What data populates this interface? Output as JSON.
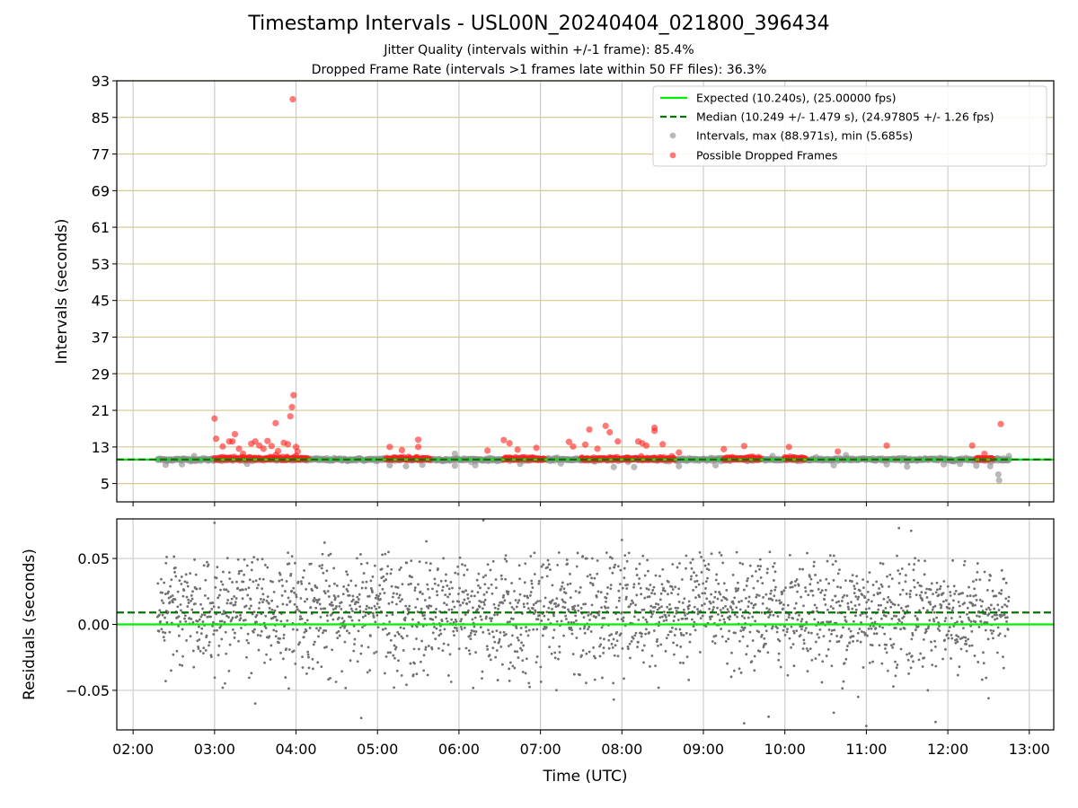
{
  "title": "Timestamp Intervals - USL00N_20240404_021800_396434",
  "subtitle_1": "Jitter Quality (intervals within +/-1 frame): 85.4%",
  "subtitle_2": "Dropped Frame Rate (intervals >1 frames late within 50 FF files): 36.3%",
  "colors": {
    "expected": "#00ee00",
    "median": "#007700",
    "intervals": "#8c8c8c",
    "dropped": "#ff2020",
    "residuals": "#707070",
    "hgrid_top": "#d8c890",
    "grid": "#cccccc"
  },
  "chart_data": [
    {
      "type": "scatter",
      "ylabel": "Intervals (seconds)",
      "xlabel": "",
      "x_unit": "hours UTC",
      "xlim": [
        1.8,
        13.3
      ],
      "ylim": [
        1,
        93
      ],
      "yticks": [
        5,
        13,
        21,
        29,
        37,
        45,
        53,
        61,
        69,
        77,
        85,
        93
      ],
      "grid": true,
      "legend": {
        "placement": "top-right",
        "entries": [
          "Expected (10.240s), (25.00000 fps)",
          "Median (10.249 +/- 1.479 s), (24.97805 +/- 1.26 fps)",
          "Intervals, max (88.971s), min (5.685s)",
          "Possible Dropped Frames"
        ]
      },
      "series": [
        {
          "name": "Expected (10.240s), (25.00000 fps)",
          "kind": "hline",
          "y": 10.24
        },
        {
          "name": "Median (10.249 +/- 1.479 s), (24.97805 +/- 1.26 fps)",
          "kind": "hline-dashed",
          "y": 10.249
        },
        {
          "name": "Intervals, max (88.971s), min (5.685s)",
          "kind": "scatter",
          "note_range": "dense band from 02:18 to 12:45 near 10.24 s",
          "points": [
            [
              2.4,
              9.1
            ],
            [
              2.6,
              9.2
            ],
            [
              2.75,
              11.0
            ],
            [
              3.4,
              9.3
            ],
            [
              5.15,
              9.0
            ],
            [
              5.35,
              8.8
            ],
            [
              5.55,
              9.1
            ],
            [
              5.95,
              11.5
            ],
            [
              5.95,
              8.9
            ],
            [
              6.2,
              9.0
            ],
            [
              6.75,
              9.3
            ],
            [
              7.25,
              9.4
            ],
            [
              7.9,
              8.6
            ],
            [
              8.15,
              8.6
            ],
            [
              8.7,
              8.8
            ],
            [
              9.15,
              9.0
            ],
            [
              9.85,
              11.0
            ],
            [
              10.6,
              9.0
            ],
            [
              10.75,
              11.2
            ],
            [
              11.25,
              9.2
            ],
            [
              11.5,
              8.7
            ],
            [
              11.95,
              9.2
            ],
            [
              12.15,
              9.3
            ],
            [
              12.35,
              8.9
            ],
            [
              12.52,
              8.8
            ],
            [
              12.62,
              7.0
            ],
            [
              12.63,
              5.685
            ],
            [
              12.75,
              11.0
            ]
          ]
        },
        {
          "name": "Possible Dropped Frames",
          "kind": "scatter",
          "points": [
            [
              3.0,
              19.2
            ],
            [
              3.02,
              14.8
            ],
            [
              3.1,
              13.1
            ],
            [
              3.18,
              14.2
            ],
            [
              3.22,
              14.2
            ],
            [
              3.25,
              15.8
            ],
            [
              3.3,
              12.6
            ],
            [
              3.35,
              11.5
            ],
            [
              3.45,
              13.7
            ],
            [
              3.5,
              14.2
            ],
            [
              3.55,
              13.3
            ],
            [
              3.6,
              12.6
            ],
            [
              3.65,
              14.3
            ],
            [
              3.7,
              13.2
            ],
            [
              3.75,
              18.2
            ],
            [
              3.78,
              12.1
            ],
            [
              3.85,
              13.9
            ],
            [
              3.9,
              13.6
            ],
            [
              3.95,
              21.7
            ],
            [
              3.97,
              24.3
            ],
            [
              3.93,
              19.7
            ],
            [
              3.96,
              88.971
            ],
            [
              4.0,
              13.0
            ],
            [
              4.02,
              12.0
            ],
            [
              5.15,
              13.0
            ],
            [
              5.3,
              12.3
            ],
            [
              5.5,
              14.6
            ],
            [
              5.5,
              13.0
            ],
            [
              6.35,
              12.2
            ],
            [
              6.55,
              14.5
            ],
            [
              6.62,
              13.8
            ],
            [
              6.72,
              12.4
            ],
            [
              6.95,
              12.8
            ],
            [
              7.35,
              14.1
            ],
            [
              7.4,
              13.1
            ],
            [
              7.55,
              13.5
            ],
            [
              7.6,
              16.8
            ],
            [
              7.7,
              12.6
            ],
            [
              7.8,
              17.6
            ],
            [
              7.85,
              16.2
            ],
            [
              7.95,
              14.2
            ],
            [
              8.2,
              14.2
            ],
            [
              8.25,
              13.8
            ],
            [
              8.3,
              13.3
            ],
            [
              8.4,
              16.5
            ],
            [
              8.4,
              17.2
            ],
            [
              8.5,
              13.6
            ],
            [
              8.7,
              11.8
            ],
            [
              9.25,
              12.5
            ],
            [
              9.5,
              13.2
            ],
            [
              10.05,
              13.0
            ],
            [
              10.65,
              12.0
            ],
            [
              11.25,
              13.3
            ],
            [
              12.3,
              13.3
            ],
            [
              12.45,
              11.5
            ],
            [
              12.65,
              18.0
            ]
          ],
          "dense_segments": [
            [
              3.0,
              4.15
            ],
            [
              5.1,
              5.65
            ],
            [
              6.55,
              7.05
            ],
            [
              7.5,
              8.65
            ],
            [
              9.25,
              9.7
            ],
            [
              10.0,
              10.25
            ],
            [
              12.35,
              12.55
            ]
          ]
        }
      ]
    },
    {
      "type": "scatter",
      "ylabel": "Residuals (seconds)",
      "xlabel": "Time (UTC)",
      "xlim": [
        1.8,
        13.3
      ],
      "ylim": [
        -0.08,
        0.08
      ],
      "yticks": [
        -0.05,
        0.0,
        0.05
      ],
      "ytick_labels": [
        "−0.05",
        "0.00",
        "0.05"
      ],
      "xticks": [
        2,
        3,
        4,
        5,
        6,
        7,
        8,
        9,
        10,
        11,
        12,
        13
      ],
      "xtick_labels": [
        "02:00",
        "03:00",
        "04:00",
        "05:00",
        "06:00",
        "07:00",
        "08:00",
        "09:00",
        "10:00",
        "11:00",
        "12:00",
        "13:00"
      ],
      "grid": true,
      "series": [
        {
          "name": "",
          "kind": "hline",
          "y": 0.0
        },
        {
          "name": "",
          "kind": "hline-dashed",
          "y": 0.009
        },
        {
          "name": "",
          "kind": "scatter",
          "note_range": "dense noise between -0.05 and 0.05 from 02:18 to 12:45",
          "points": [
            [
              3.0,
              0.077
            ],
            [
              6.3,
              0.079
            ],
            [
              5.6,
              0.063
            ],
            [
              4.35,
              0.062
            ],
            [
              11.4,
              0.073
            ],
            [
              11.55,
              0.071
            ],
            [
              8.0,
              0.064
            ],
            [
              4.8,
              -0.071
            ],
            [
              9.5,
              -0.075
            ],
            [
              10.6,
              -0.067
            ],
            [
              11.0,
              -0.077
            ],
            [
              11.85,
              -0.074
            ],
            [
              3.5,
              -0.06
            ],
            [
              7.9,
              -0.057
            ],
            [
              9.8,
              -0.07
            ],
            [
              2.4,
              -0.043
            ],
            [
              12.5,
              -0.056
            ],
            [
              3.1,
              -0.048
            ],
            [
              8.45,
              -0.048
            ],
            [
              10.9,
              -0.055
            ]
          ]
        }
      ]
    }
  ]
}
